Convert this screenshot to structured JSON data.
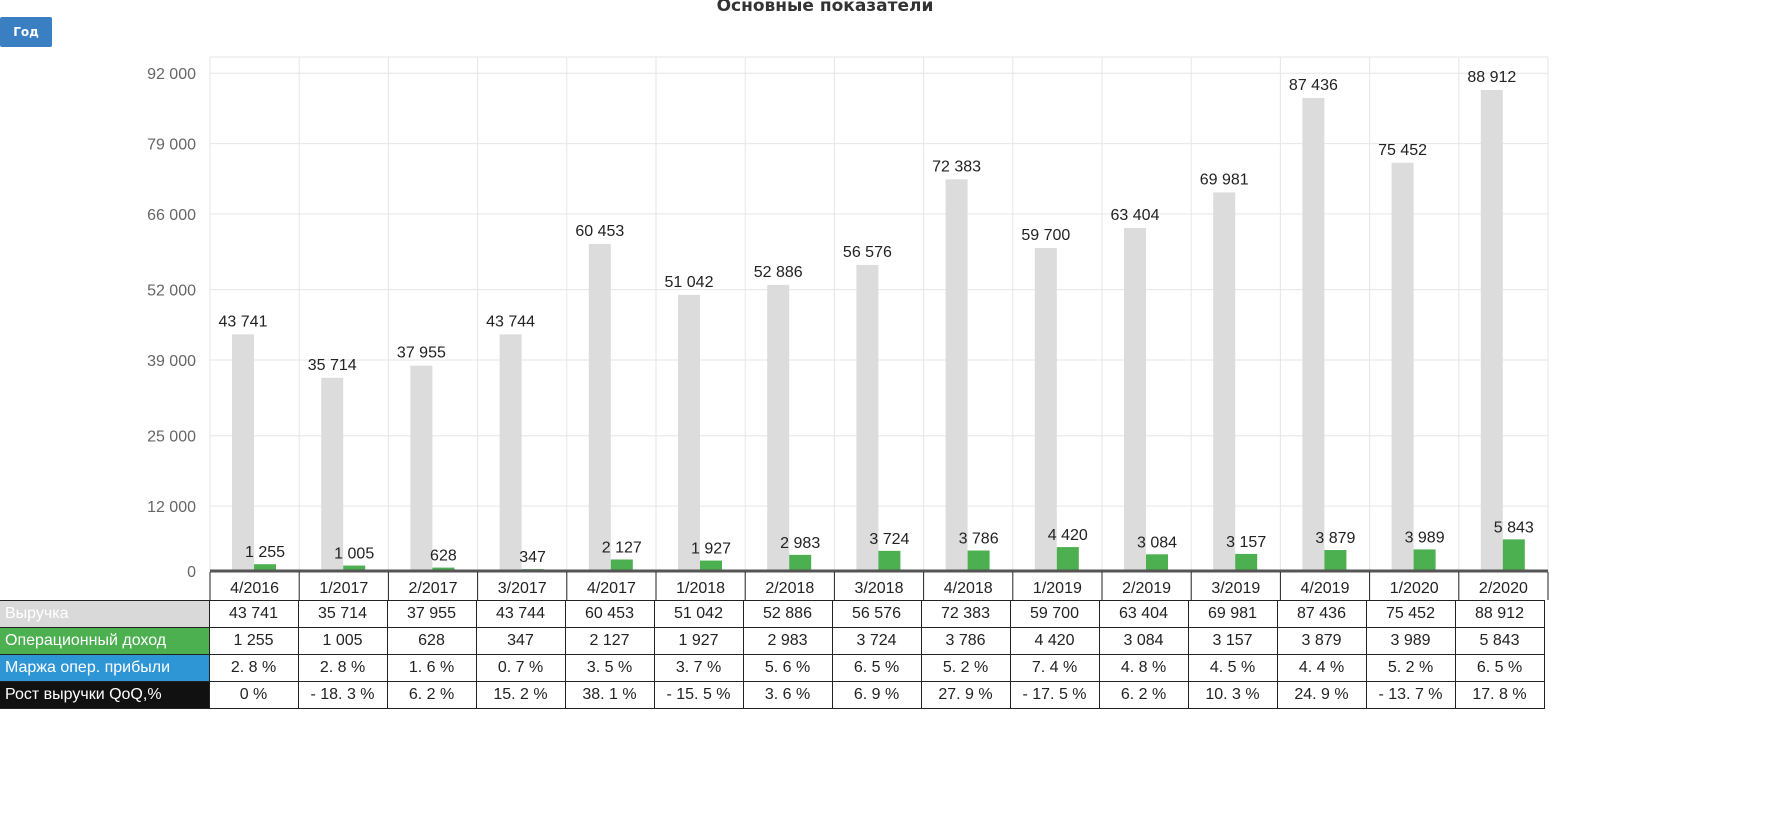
{
  "header": {
    "title": "Основные показатели",
    "period_button": "Год"
  },
  "colors": {
    "revenue_bar": "#dcdcdc",
    "income_bar": "#4caf50",
    "revenue_row": "#d9d9d9",
    "income_row": "#4caf50",
    "margin_row": "#2f96d6",
    "growth_row": "#111111"
  },
  "chart_data": {
    "type": "bar",
    "title": "Основные показатели",
    "categories": [
      "4/2016",
      "1/2017",
      "2/2017",
      "3/2017",
      "4/2017",
      "1/2018",
      "2/2018",
      "3/2018",
      "4/2018",
      "1/2019",
      "2/2019",
      "3/2019",
      "4/2019",
      "1/2020",
      "2/2020"
    ],
    "series": [
      {
        "name": "Выручка",
        "values": [
          43741,
          35714,
          37955,
          43744,
          60453,
          51042,
          52886,
          56576,
          72383,
          59700,
          63404,
          69981,
          87436,
          75452,
          88912
        ],
        "labels": [
          "43 741",
          "35 714",
          "37 955",
          "43 744",
          "60 453",
          "51 042",
          "52 886",
          "56 576",
          "72 383",
          "59 700",
          "63 404",
          "69 981",
          "87 436",
          "75 452",
          "88 912"
        ]
      },
      {
        "name": "Операционный доход",
        "values": [
          1255,
          1005,
          628,
          347,
          2127,
          1927,
          2983,
          3724,
          3786,
          4420,
          3084,
          3157,
          3879,
          3989,
          5843
        ],
        "labels": [
          "1 255",
          "1 005",
          "628",
          "347",
          "2 127",
          "1 927",
          "2 983",
          "3 724",
          "3 786",
          "4 420",
          "3 084",
          "3 157",
          "3 879",
          "3 989",
          "5 843"
        ]
      }
    ],
    "yticks": [
      0,
      12000,
      25000,
      39000,
      52000,
      66000,
      79000,
      92000
    ],
    "ytick_labels": [
      "0",
      "12 000",
      "25 000",
      "39 000",
      "52 000",
      "66 000",
      "79 000",
      "92 000"
    ],
    "ylim": [
      0,
      95000
    ],
    "grid": true
  },
  "table": {
    "rows": [
      {
        "label": "Выручка",
        "values": [
          "43 741",
          "35 714",
          "37 955",
          "43 744",
          "60 453",
          "51 042",
          "52 886",
          "56 576",
          "72 383",
          "59 700",
          "63 404",
          "69 981",
          "87 436",
          "75 452",
          "88 912"
        ]
      },
      {
        "label": "Операционный доход",
        "values": [
          "1 255",
          "1 005",
          "628",
          "347",
          "2 127",
          "1 927",
          "2 983",
          "3 724",
          "3 786",
          "4 420",
          "3 084",
          "3 157",
          "3 879",
          "3 989",
          "5 843"
        ]
      },
      {
        "label": "Маржа опер. прибыли",
        "values": [
          "2. 8 %",
          "2. 8 %",
          "1. 6 %",
          "0. 7 %",
          "3. 5 %",
          "3. 7 %",
          "5. 6 %",
          "6. 5 %",
          "5. 2 %",
          "7. 4 %",
          "4. 8 %",
          "4. 5 %",
          "4. 4 %",
          "5. 2 %",
          "6. 5 %"
        ]
      },
      {
        "label": "Рост выручки QoQ,%",
        "values": [
          "0 %",
          "- 18. 3 %",
          "6. 2 %",
          "15. 2 %",
          "38. 1 %",
          "- 15. 5 %",
          "3. 6 %",
          "6. 9 %",
          "27. 9 %",
          "- 17. 5 %",
          "6. 2 %",
          "10. 3 %",
          "24. 9 %",
          "- 13. 7 %",
          "17. 8 %"
        ]
      }
    ]
  }
}
